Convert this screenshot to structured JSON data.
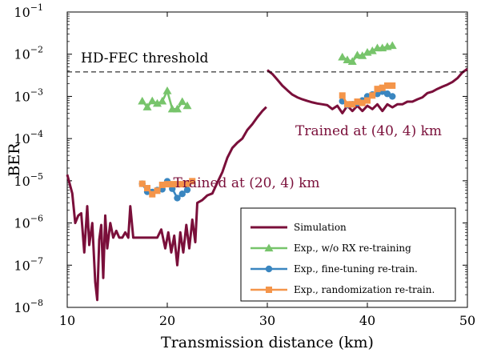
{
  "chart_data": {
    "type": "line",
    "xlabel": "Transmission distance (km)",
    "ylabel": "BER",
    "xlim": [
      10,
      50
    ],
    "ylim": [
      1e-08,
      0.1
    ],
    "y_scale": "log",
    "x_ticks": [
      10,
      20,
      30,
      40,
      50
    ],
    "y_ticks": [
      {
        "exp": -8,
        "label": "10",
        "sup": "−8"
      },
      {
        "exp": -7,
        "label": "10",
        "sup": "−7"
      },
      {
        "exp": -6,
        "label": "10",
        "sup": "−6"
      },
      {
        "exp": -5,
        "label": "10",
        "sup": "−5"
      },
      {
        "exp": -4,
        "label": "10",
        "sup": "−4"
      },
      {
        "exp": -3,
        "label": "10",
        "sup": "−3"
      },
      {
        "exp": -2,
        "label": "10",
        "sup": "−2"
      },
      {
        "exp": -1,
        "label": "10",
        "sup": "−1"
      }
    ],
    "grid": false,
    "legend_position": "bottom-right",
    "threshold": {
      "label": "HD-FEC threshold",
      "value": 0.0038
    },
    "annotations": [
      {
        "text": "Trained at (40, 4) km",
        "x": 40,
        "y": 0.00012
      },
      {
        "text": "Trained at (20, 4) km",
        "x": 27.8,
        "y": 7e-06
      }
    ],
    "series": [
      {
        "name": "Simulation",
        "color": "#7a0f3a",
        "marker": "none",
        "segments": [
          [
            [
              10.0,
              1.4e-05
            ],
            [
              10.5,
              5e-06
            ],
            [
              10.8,
              1e-06
            ],
            [
              11.1,
              1.5e-06
            ],
            [
              11.4,
              1.7e-06
            ],
            [
              11.7,
              2e-07
            ],
            [
              12.0,
              2.5e-06
            ],
            [
              12.2,
              3e-07
            ],
            [
              12.5,
              1e-06
            ],
            [
              12.8,
              4e-08
            ],
            [
              13.0,
              1.5e-08
            ],
            [
              13.2,
              4e-07
            ],
            [
              13.4,
              9e-07
            ],
            [
              13.6,
              5e-08
            ],
            [
              13.8,
              1.5e-06
            ],
            [
              14.0,
              2.5e-07
            ],
            [
              14.3,
              1e-06
            ],
            [
              14.6,
              4.5e-07
            ],
            [
              14.9,
              6.5e-07
            ],
            [
              15.2,
              4.5e-07
            ],
            [
              15.5,
              4.5e-07
            ],
            [
              15.8,
              6e-07
            ],
            [
              16.1,
              4.5e-07
            ],
            [
              16.3,
              2.5e-06
            ],
            [
              16.6,
              4.5e-07
            ],
            [
              17.0,
              4.5e-07
            ],
            [
              17.5,
              4.5e-07
            ],
            [
              18.0,
              4.5e-07
            ],
            [
              18.5,
              4.5e-07
            ],
            [
              19.0,
              4.5e-07
            ],
            [
              19.4,
              7e-07
            ],
            [
              19.8,
              2.5e-07
            ],
            [
              20.1,
              6e-07
            ],
            [
              20.4,
              2e-07
            ],
            [
              20.7,
              5e-07
            ],
            [
              21.0,
              1e-07
            ],
            [
              21.3,
              6e-07
            ],
            [
              21.6,
              2e-07
            ],
            [
              21.9,
              9e-07
            ],
            [
              22.2,
              2.5e-07
            ],
            [
              22.5,
              1.2e-06
            ],
            [
              22.8,
              3.5e-07
            ],
            [
              23.0,
              3e-06
            ],
            [
              23.5,
              3.5e-06
            ],
            [
              24.0,
              4.5e-06
            ],
            [
              24.5,
              5e-06
            ],
            [
              25.0,
              9e-06
            ],
            [
              25.5,
              1.6e-05
            ],
            [
              26.0,
              3.5e-05
            ],
            [
              26.5,
              6e-05
            ],
            [
              27.0,
              8e-05
            ],
            [
              27.5,
              0.0001
            ],
            [
              28.0,
              0.00016
            ],
            [
              28.5,
              0.00022
            ],
            [
              29.0,
              0.00032
            ],
            [
              29.5,
              0.00045
            ],
            [
              29.9,
              0.00056
            ]
          ],
          [
            [
              30.0,
              0.0042
            ],
            [
              30.5,
              0.0034
            ],
            [
              31.0,
              0.0025
            ],
            [
              31.5,
              0.0018
            ],
            [
              32.0,
              0.0014
            ],
            [
              32.5,
              0.0011
            ],
            [
              33.0,
              0.00095
            ],
            [
              33.5,
              0.00085
            ],
            [
              34.0,
              0.00078
            ],
            [
              34.5,
              0.00072
            ],
            [
              35.0,
              0.00068
            ],
            [
              35.5,
              0.00065
            ],
            [
              36.0,
              0.00062
            ],
            [
              36.5,
              0.0005
            ],
            [
              37.0,
              0.0006
            ],
            [
              37.5,
              0.0004
            ],
            [
              38.0,
              0.0006
            ],
            [
              38.5,
              0.00045
            ],
            [
              39.0,
              0.0006
            ],
            [
              39.5,
              0.00045
            ],
            [
              40.0,
              0.0006
            ],
            [
              40.5,
              0.0005
            ],
            [
              41.0,
              0.00065
            ],
            [
              41.5,
              0.00045
            ],
            [
              42.0,
              0.00065
            ],
            [
              42.5,
              0.00055
            ],
            [
              43.0,
              0.00065
            ],
            [
              43.5,
              0.00065
            ],
            [
              44.0,
              0.00075
            ],
            [
              44.5,
              0.00075
            ],
            [
              45.0,
              0.00085
            ],
            [
              45.5,
              0.00095
            ],
            [
              46.0,
              0.0012
            ],
            [
              46.5,
              0.0013
            ],
            [
              47.0,
              0.0015
            ],
            [
              47.5,
              0.0017
            ],
            [
              48.0,
              0.0019
            ],
            [
              48.5,
              0.0022
            ],
            [
              49.0,
              0.0027
            ],
            [
              49.5,
              0.0037
            ],
            [
              50.0,
              0.0045
            ]
          ]
        ]
      },
      {
        "name": "Exp., w/o RX re-training",
        "color": "#77c46b",
        "marker": "triangle",
        "segments": [
          [
            [
              17.5,
              0.00077
            ],
            [
              18.0,
              0.00056
            ],
            [
              18.5,
              0.00078
            ],
            [
              19.0,
              0.00068
            ],
            [
              19.5,
              0.00077
            ],
            [
              20.0,
              0.00135
            ],
            [
              20.5,
              0.0005
            ],
            [
              21.0,
              0.0005
            ],
            [
              21.5,
              0.00075
            ],
            [
              22.0,
              0.0006
            ]
          ],
          [
            [
              37.5,
              0.0085
            ],
            [
              38.0,
              0.0073
            ],
            [
              38.5,
              0.0067
            ],
            [
              39.0,
              0.0095
            ],
            [
              39.5,
              0.0092
            ],
            [
              40.0,
              0.011
            ],
            [
              40.5,
              0.012
            ],
            [
              41.0,
              0.014
            ],
            [
              41.5,
              0.014
            ],
            [
              42.0,
              0.015
            ],
            [
              42.5,
              0.016
            ]
          ]
        ]
      },
      {
        "name": "Exp., fine-tuning re-train.",
        "color": "#3a86c0",
        "marker": "circle",
        "segments": [
          [
            [
              17.5,
              8.5e-06
            ],
            [
              18.0,
              5.5e-06
            ],
            [
              18.5,
              5.4e-06
            ],
            [
              19.0,
              6e-06
            ],
            [
              19.5,
              6.3e-06
            ],
            [
              20.0,
              9.7e-06
            ],
            [
              20.5,
              6.5e-06
            ],
            [
              21.0,
              3.9e-06
            ],
            [
              21.5,
              4.9e-06
            ],
            [
              22.0,
              6.1e-06
            ]
          ],
          [
            [
              37.5,
              0.00077
            ],
            [
              38.0,
              0.00063
            ],
            [
              38.5,
              0.00065
            ],
            [
              39.0,
              0.0007
            ],
            [
              39.5,
              0.0008
            ],
            [
              40.0,
              0.001
            ],
            [
              40.5,
              0.0011
            ],
            [
              41.0,
              0.00115
            ],
            [
              41.5,
              0.0013
            ],
            [
              42.0,
              0.00115
            ],
            [
              42.5,
              0.001
            ]
          ]
        ]
      },
      {
        "name": "Exp., randomization re-train.",
        "color": "#f4954a",
        "marker": "square",
        "segments": [
          [
            [
              17.5,
              8.5e-06
            ],
            [
              18.0,
              6.7e-06
            ],
            [
              18.5,
              4.8e-06
            ],
            [
              19.0,
              5.8e-06
            ],
            [
              19.5,
              8e-06
            ],
            [
              20.0,
              8.3e-06
            ],
            [
              20.5,
              8.3e-06
            ],
            [
              21.0,
              8.3e-06
            ],
            [
              21.5,
              8.3e-06
            ],
            [
              22.0,
              8.5e-06
            ],
            [
              22.5,
              9.8e-06
            ]
          ],
          [
            [
              37.5,
              0.00105
            ],
            [
              38.0,
              0.00065
            ],
            [
              38.5,
              0.00065
            ],
            [
              39.0,
              0.00075
            ],
            [
              39.5,
              0.0007
            ],
            [
              40.0,
              0.0008
            ],
            [
              40.5,
              0.00105
            ],
            [
              41.0,
              0.0015
            ],
            [
              41.5,
              0.0016
            ],
            [
              42.0,
              0.0018
            ],
            [
              42.5,
              0.0018
            ]
          ]
        ]
      }
    ]
  }
}
